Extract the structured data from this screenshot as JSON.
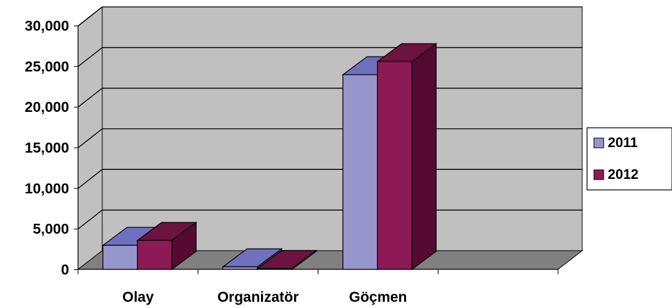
{
  "chart_data": {
    "type": "bar",
    "style": "3d-clustered-column",
    "categories": [
      "Olay",
      "Organizatör",
      "Göçmen",
      ""
    ],
    "series": [
      {
        "name": "2011",
        "values": [
          3000,
          350,
          24000,
          null
        ],
        "color": "#9696CC"
      },
      {
        "name": "2012",
        "values": [
          3600,
          150,
          25600,
          null
        ],
        "color": "#8E1A55"
      }
    ],
    "y_ticks": [
      "0",
      "5,000",
      "10,000",
      "15,000",
      "20,000",
      "25,000",
      "30,000"
    ],
    "ylim": [
      0,
      30000
    ],
    "ystep": 5000,
    "grid": true,
    "legend_position": "right",
    "colors": {
      "wall": "#C0C0C0",
      "floor": "#808080",
      "gridline": "#000000",
      "series_2011_face": "#9696CC",
      "series_2011_top": "#6F70BE",
      "series_2011_side": "#6C6CA6",
      "series_2012_face": "#8E1A55",
      "series_2012_top": "#6C1340",
      "series_2012_side": "#560A33"
    }
  }
}
